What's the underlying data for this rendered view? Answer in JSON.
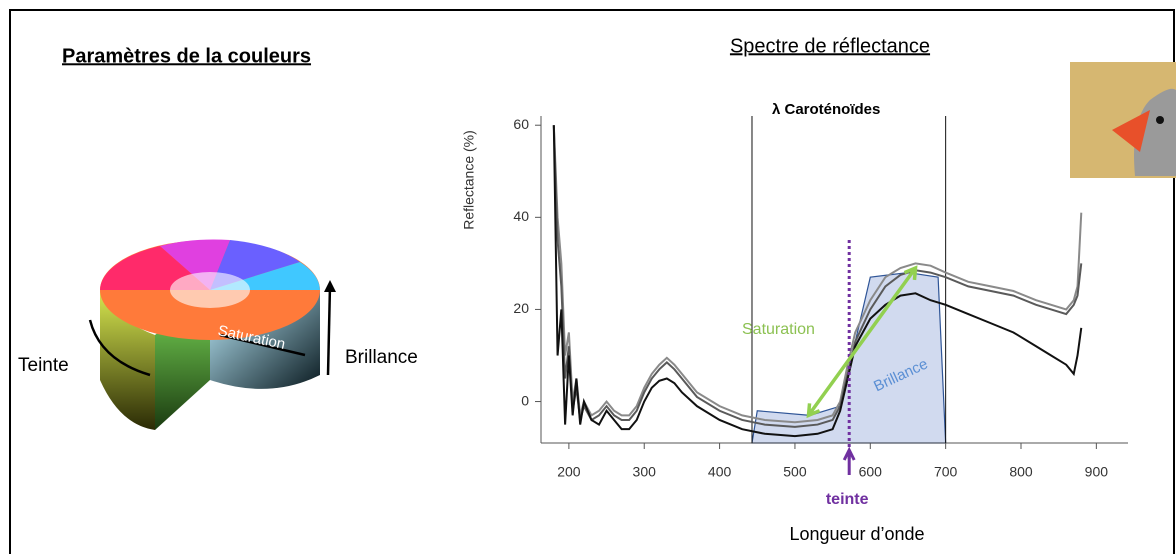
{
  "slide": {
    "left_title": "Paramètres de la couleurs",
    "right_title": "Spectre de réflectance",
    "teinte_label": "Teinte",
    "saturation_label": "Saturation",
    "brillance_label": "Brillance"
  },
  "chart_data": {
    "type": "line",
    "y_label": "Reflectance (%)",
    "x_label": "Longueur d’onde",
    "x": [
      180,
      185,
      190,
      195,
      200,
      205,
      210,
      215,
      220,
      230,
      240,
      250,
      260,
      270,
      280,
      290,
      300,
      310,
      320,
      330,
      340,
      350,
      370,
      400,
      430,
      460,
      500,
      530,
      550,
      560,
      570,
      580,
      600,
      620,
      640,
      660,
      680,
      700,
      730,
      760,
      790,
      820,
      840,
      860,
      870,
      875,
      880
    ],
    "series": [
      {
        "color": "#8a8a8a",
        "values": [
          60,
          40,
          30,
          10,
          15,
          0,
          5,
          -3,
          0,
          -3,
          -2,
          0,
          -2,
          -3,
          -3,
          -1,
          3,
          6,
          8,
          9.5,
          8,
          6,
          2,
          -1,
          -3,
          -4,
          -4.5,
          -4,
          -3,
          0,
          8,
          15,
          22,
          27,
          29,
          30,
          29.5,
          28,
          26,
          25,
          24,
          22,
          21,
          20,
          22,
          25,
          41
        ]
      },
      {
        "color": "#5a5a5a",
        "values": [
          60,
          35,
          25,
          5,
          12,
          -2,
          3,
          -4,
          -1,
          -4,
          -3,
          -1,
          -3,
          -4,
          -4,
          -2,
          2,
          5,
          7,
          8.5,
          7,
          5,
          1,
          -2,
          -4,
          -5,
          -5.5,
          -5,
          -4,
          -1,
          6,
          13,
          20,
          25,
          27.5,
          28.5,
          28,
          27,
          25,
          24,
          23,
          21,
          20,
          19,
          21,
          23,
          30
        ]
      },
      {
        "color": "#111111",
        "values": [
          60,
          10,
          20,
          -5,
          10,
          -3,
          5,
          -5,
          0,
          -4,
          -5,
          -2,
          -4,
          -6,
          -6,
          -4,
          0,
          3,
          4.5,
          5,
          4,
          2,
          -1,
          -4,
          -6,
          -7,
          -7.5,
          -7,
          -6,
          -2,
          5,
          12,
          18,
          21,
          23,
          23.5,
          22,
          21,
          19,
          17,
          15,
          12,
          10,
          8,
          6,
          10,
          16
        ]
      }
    ],
    "xlim": [
      163,
      942
    ],
    "ylim": [
      -9,
      62
    ],
    "xticks": [
      200,
      300,
      400,
      500,
      600,
      700,
      800,
      900
    ],
    "yticks": [
      0,
      20,
      40,
      60
    ],
    "annotations": {
      "carotenoides": "λ Caroténoïdes",
      "saturation": "Saturation",
      "brillance": "Brillance",
      "teinte": "teinte"
    },
    "carotenoid_band": [
      443,
      700
    ],
    "teinte_x": 572,
    "brillance_area": {
      "x": [
        443,
        450,
        520,
        560,
        600,
        650,
        690,
        700
      ],
      "y": [
        -9,
        -2,
        -3,
        -1,
        27,
        28,
        27,
        -9
      ]
    },
    "saturation_arrow": {
      "x": [
        518,
        660
      ],
      "y": [
        -3,
        29
      ]
    }
  }
}
